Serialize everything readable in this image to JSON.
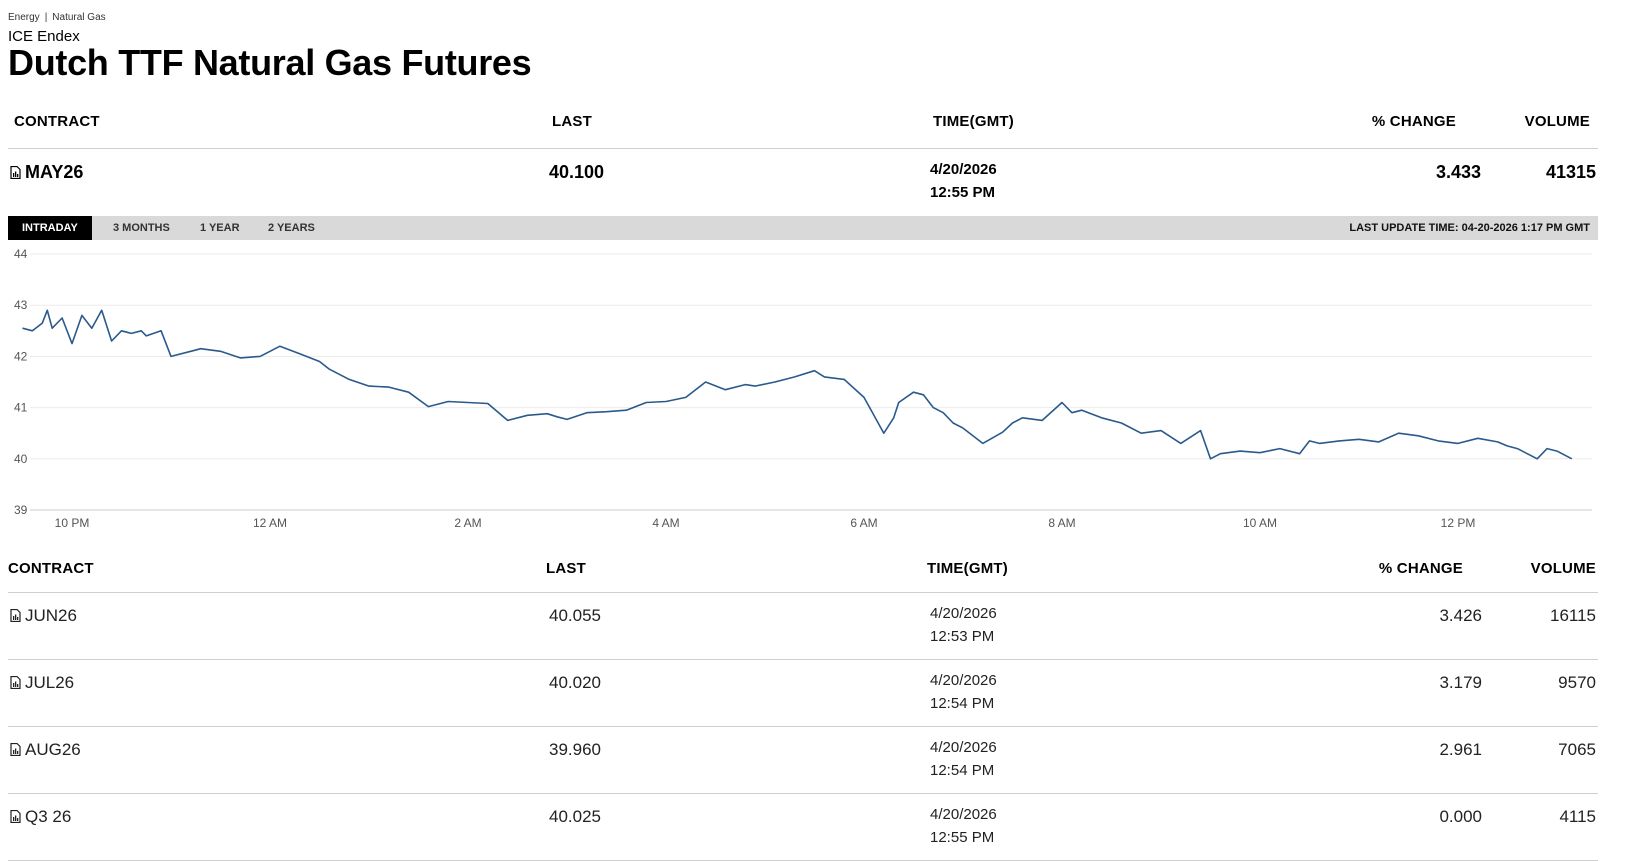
{
  "breadcrumb": [
    "Energy",
    "Natural Gas"
  ],
  "exchange": "ICE Endex",
  "title": "Dutch TTF Natural Gas Futures",
  "columns": {
    "contract": "CONTRACT",
    "last": "LAST",
    "time": "TIME(GMT)",
    "change": "% CHANGE",
    "volume": "VOLUME"
  },
  "front_contract": {
    "contract": "MAY26",
    "last": "40.100",
    "date": "4/20/2026",
    "time": "12:55 PM",
    "change": "3.433",
    "volume": "41315"
  },
  "tabs": [
    "INTRADAY",
    "3 MONTHS",
    "1 YEAR",
    "2 YEARS"
  ],
  "active_tab": "INTRADAY",
  "last_update": "LAST UPDATE TIME: 04-20-2026 1:17 PM GMT",
  "chart_data": {
    "type": "line",
    "y_ticks": [
      "44",
      "43",
      "42",
      "41",
      "40",
      "39"
    ],
    "ylim": [
      39,
      44
    ],
    "x_ticks": [
      "10 PM",
      "12 AM",
      "2 AM",
      "4 AM",
      "6 AM",
      "8 AM",
      "10 AM",
      "12 PM"
    ],
    "x_hours": [
      22,
      24,
      26,
      28,
      30,
      32,
      34,
      36
    ],
    "line_color": "#2a5a8c",
    "grid": true,
    "series": [
      {
        "x": [
          21.5,
          21.6,
          21.7,
          21.75,
          21.8,
          21.9,
          22.0,
          22.1,
          22.2,
          22.3,
          22.4,
          22.5,
          22.6,
          22.7,
          22.75,
          22.9,
          23.0,
          23.2,
          23.3,
          23.5,
          23.7,
          23.9,
          24.1,
          24.3,
          24.5,
          24.6,
          24.8,
          25.0,
          25.2,
          25.4,
          25.6,
          25.8,
          26.0,
          26.2,
          26.4,
          26.6,
          26.8,
          26.9,
          27.0,
          27.2,
          27.4,
          27.6,
          27.8,
          28.0,
          28.2,
          28.4,
          28.6,
          28.8,
          28.9,
          29.1,
          29.3,
          29.5,
          29.6,
          29.8,
          30.0,
          30.1,
          30.2,
          30.3,
          30.35,
          30.5,
          30.6,
          30.7,
          30.8,
          30.9,
          31.0,
          31.2,
          31.4,
          31.5,
          31.6,
          31.8,
          32.0,
          32.1,
          32.2,
          32.4,
          32.6,
          32.8,
          33.0,
          33.2,
          33.4,
          33.5,
          33.6,
          33.8,
          34.0,
          34.2,
          34.4,
          34.5,
          34.6,
          34.8,
          35.0,
          35.2,
          35.4,
          35.6,
          35.8,
          36.0,
          36.2,
          36.4,
          36.5,
          36.6,
          36.8,
          36.9,
          37.0,
          37.15
        ],
        "y": [
          42.55,
          42.5,
          42.65,
          42.9,
          42.55,
          42.75,
          42.25,
          42.8,
          42.55,
          42.9,
          42.3,
          42.5,
          42.45,
          42.5,
          42.4,
          42.5,
          42.0,
          42.1,
          42.15,
          42.1,
          41.97,
          42.0,
          42.2,
          42.05,
          41.9,
          41.75,
          41.55,
          41.42,
          41.4,
          41.3,
          41.02,
          41.12,
          41.1,
          41.08,
          40.75,
          40.85,
          40.88,
          40.82,
          40.77,
          40.9,
          40.92,
          40.95,
          41.1,
          41.12,
          41.2,
          41.5,
          41.35,
          41.45,
          41.42,
          41.5,
          41.6,
          41.72,
          41.6,
          41.55,
          41.2,
          40.85,
          40.5,
          40.8,
          41.1,
          41.3,
          41.25,
          41.0,
          40.9,
          40.7,
          40.6,
          40.3,
          40.52,
          40.7,
          40.8,
          40.75,
          41.1,
          40.9,
          40.95,
          40.8,
          40.7,
          40.5,
          40.55,
          40.3,
          40.55,
          40.0,
          40.1,
          40.15,
          40.12,
          40.2,
          40.1,
          40.35,
          40.3,
          40.35,
          40.38,
          40.33,
          40.5,
          40.45,
          40.35,
          40.3,
          40.4,
          40.33,
          40.25,
          40.2,
          40.0,
          40.2,
          40.15,
          40.0
        ]
      }
    ]
  },
  "contracts": [
    {
      "contract": "JUN26",
      "last": "40.055",
      "date": "4/20/2026",
      "time": "12:53 PM",
      "change": "3.426",
      "volume": "16115"
    },
    {
      "contract": "JUL26",
      "last": "40.020",
      "date": "4/20/2026",
      "time": "12:54 PM",
      "change": "3.179",
      "volume": "9570"
    },
    {
      "contract": "AUG26",
      "last": "39.960",
      "date": "4/20/2026",
      "time": "12:54 PM",
      "change": "2.961",
      "volume": "7065"
    },
    {
      "contract": "Q3 26",
      "last": "40.025",
      "date": "4/20/2026",
      "time": "12:55 PM",
      "change": "0.000",
      "volume": "4115"
    }
  ]
}
